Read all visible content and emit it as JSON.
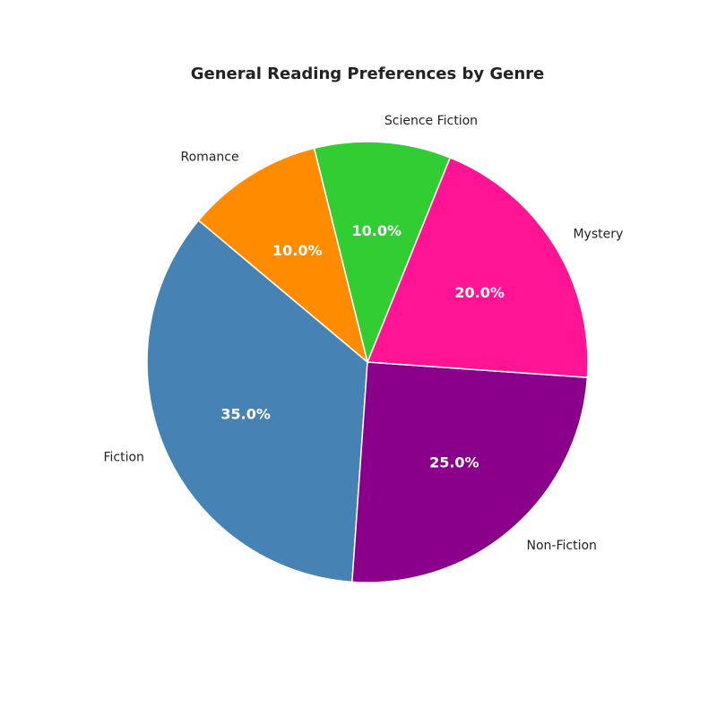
{
  "chart_data": {
    "type": "pie",
    "title": "General Reading Preferences by Genre",
    "slices": [
      {
        "label": "Fiction",
        "value": 35.0,
        "pct_label": "35.0%",
        "color": "#4682b4"
      },
      {
        "label": "Non-Fiction",
        "value": 25.0,
        "pct_label": "25.0%",
        "color": "#8b008b"
      },
      {
        "label": "Mystery",
        "value": 20.0,
        "pct_label": "20.0%",
        "color": "#ff1493"
      },
      {
        "label": "Science Fiction",
        "value": 10.0,
        "pct_label": "10.0%",
        "color": "#32cd32"
      },
      {
        "label": "Romance",
        "value": 10.0,
        "pct_label": "10.0%",
        "color": "#ff8c00"
      }
    ],
    "start_angle_deg": 140,
    "direction": "counterclockwise",
    "legend": "none"
  }
}
